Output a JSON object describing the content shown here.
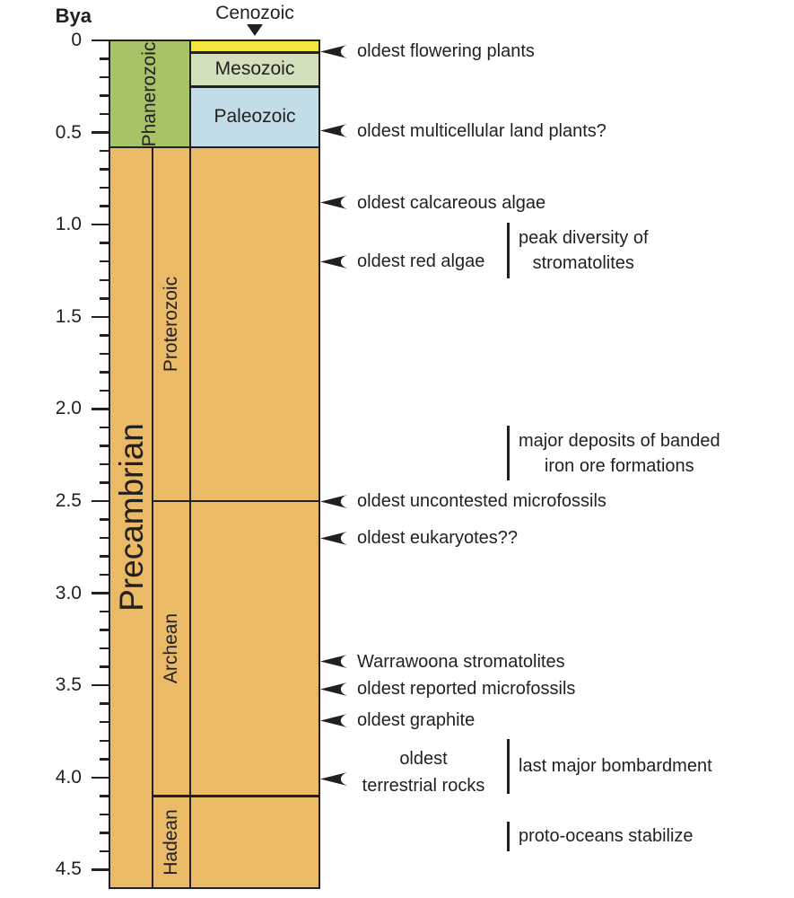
{
  "axis": {
    "unit_label": "Bya",
    "major_tick_labels": [
      "0",
      "0.5",
      "1.0",
      "1.5",
      "2.0",
      "2.5",
      "3.0",
      "3.5",
      "4.0",
      "4.5"
    ],
    "major_tick_step_bya": 0.5,
    "minor_tick_step_bya": 0.1,
    "range_bya": [
      0,
      4.6
    ]
  },
  "colors": {
    "precambrian_orange": "#eaba67",
    "phanerozoic_green": "#a6c366",
    "cenozoic_yellow": "#f3e63c",
    "mesozoic_pale_green": "#d2e1bc",
    "paleozoic_pale_blue": "#c2dde8",
    "line_black": "#231f20"
  },
  "supereon": {
    "name": "Precambrian",
    "start_bya": 0.58,
    "end_bya": 4.6
  },
  "eons": [
    {
      "name": "Phanerozoic",
      "start_bya": 0,
      "end_bya": 0.58
    },
    {
      "name": "Proterozoic",
      "start_bya": 0.58,
      "end_bya": 2.5
    },
    {
      "name": "Archean",
      "start_bya": 2.5,
      "end_bya": 4.1
    },
    {
      "name": "Hadean",
      "start_bya": 4.1,
      "end_bya": 4.6
    }
  ],
  "eras": [
    {
      "name": "Cenozoic",
      "start_bya": 0,
      "end_bya": 0.065
    },
    {
      "name": "Mesozoic",
      "start_bya": 0.065,
      "end_bya": 0.25
    },
    {
      "name": "Paleozoic",
      "start_bya": 0.25,
      "end_bya": 0.58
    }
  ],
  "events": [
    {
      "label": "oldest flowering plants",
      "bya": 0.06
    },
    {
      "label": "oldest multicellular land plants?",
      "bya": 0.49
    },
    {
      "label": "oldest calcareous algae",
      "bya": 0.88
    },
    {
      "label": "oldest red algae",
      "bya": 1.2
    },
    {
      "label": "oldest uncontested microfossils",
      "bya": 2.5
    },
    {
      "label": "oldest eukaryotes??",
      "bya": 2.7
    },
    {
      "label": "Warrawoona stromatolites",
      "bya": 3.37
    },
    {
      "label": "oldest reported microfossils",
      "bya": 3.52
    },
    {
      "label": "oldest graphite",
      "bya": 3.69
    },
    {
      "label": "oldest terrestrial rocks",
      "bya": 4.01,
      "lines": [
        "oldest",
        "terrestrial rocks"
      ]
    }
  ],
  "ranges": [
    {
      "label": "peak diversity of stromatolites",
      "lines": [
        "peak diversity of",
        "stromatolites"
      ],
      "start_bya": 0.99,
      "end_bya": 1.29
    },
    {
      "label": "major deposits of banded iron ore formations",
      "lines": [
        "major deposits of banded",
        "iron ore formations"
      ],
      "start_bya": 2.09,
      "end_bya": 2.39
    },
    {
      "label": "last major bombardment",
      "lines": [
        "last major bombardment"
      ],
      "start_bya": 3.79,
      "end_bya": 4.09
    },
    {
      "label": "proto-oceans stabilize",
      "lines": [
        "proto-oceans stabilize"
      ],
      "start_bya": 4.24,
      "end_bya": 4.4
    }
  ]
}
